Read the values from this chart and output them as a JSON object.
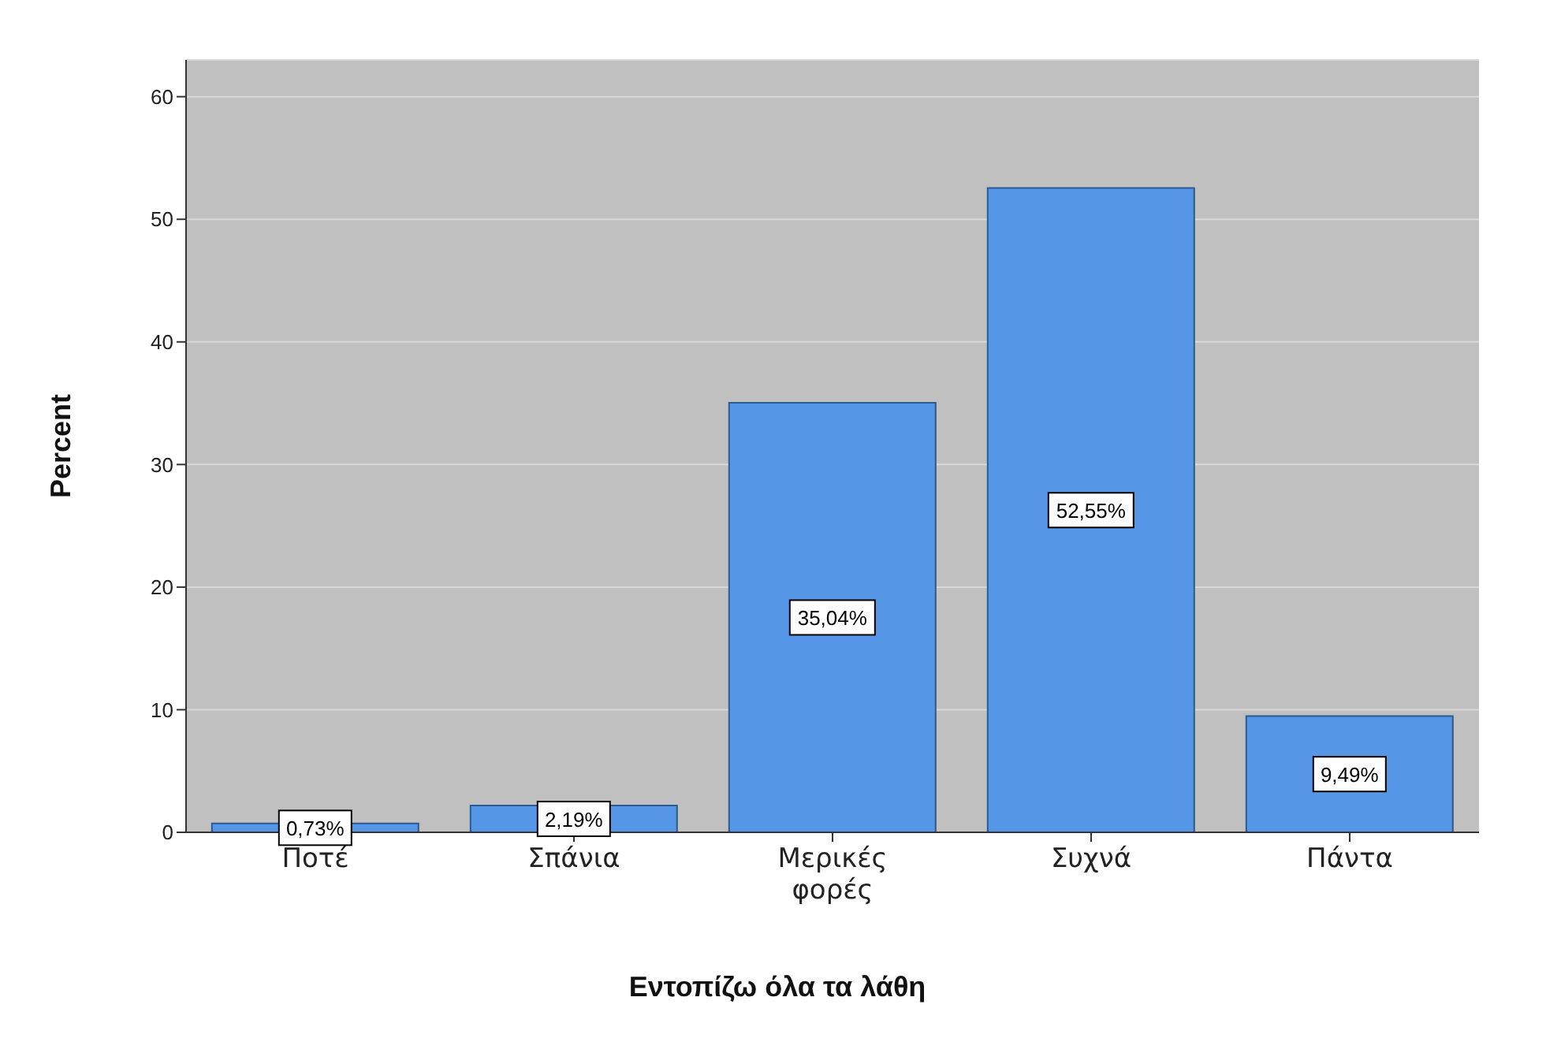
{
  "chart_data": {
    "type": "bar",
    "xlabel": "Εντοπίζω όλα τα λάθη",
    "ylabel": "Percent",
    "categories": [
      "Ποτέ",
      "Σπάνια",
      "Μερικές φορές",
      "Συχνά",
      "Πάντα"
    ],
    "values": [
      0.73,
      2.19,
      35.04,
      52.55,
      9.49
    ],
    "value_labels": [
      "0,73%",
      "2,19%",
      "35,04%",
      "52,55%",
      "9,49%"
    ],
    "color": "#5596e6",
    "ylim": [
      0,
      63
    ],
    "yticks": [
      0,
      10,
      20,
      30,
      40,
      50,
      60
    ],
    "grid": "y"
  }
}
